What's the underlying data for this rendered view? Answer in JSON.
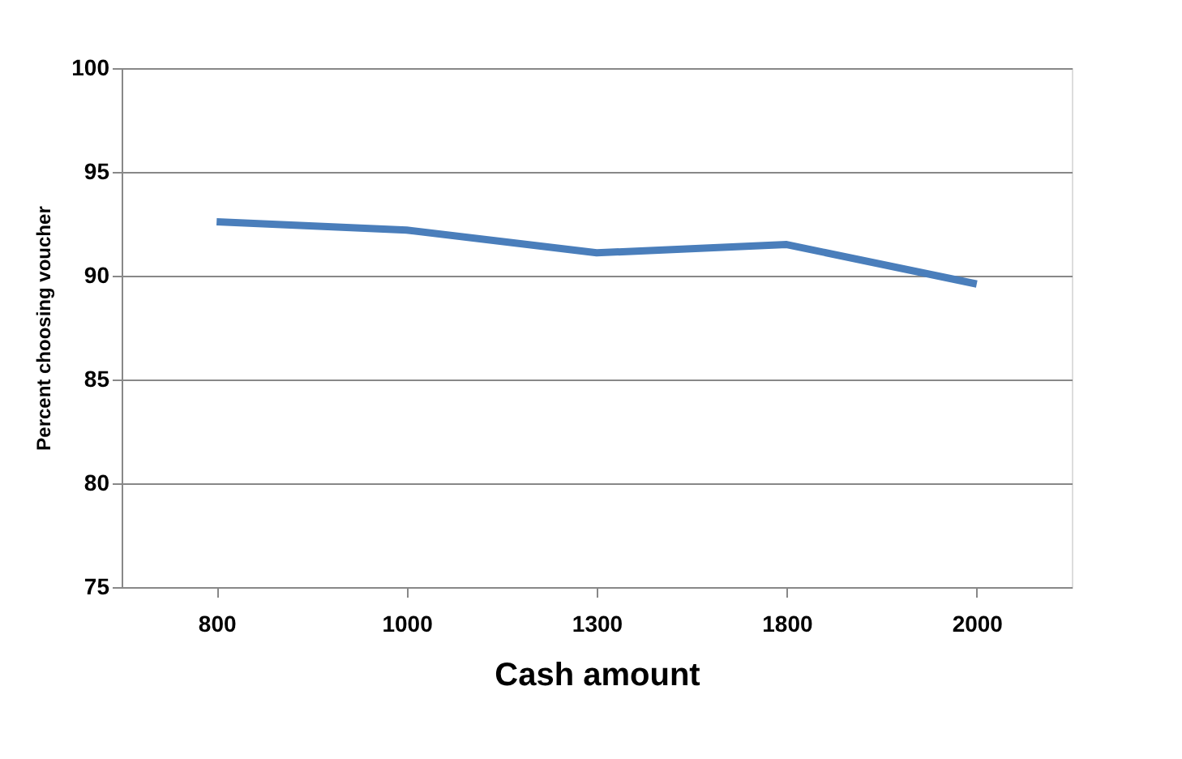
{
  "chart_data": {
    "type": "line",
    "xlabel": "Cash amount",
    "ylabel": "Percent choosing voucher",
    "categories": [
      "800",
      "1000",
      "1300",
      "1800",
      "2000"
    ],
    "series": [
      {
        "color": "#4a7ebb",
        "values": [
          92.6,
          92.2,
          91.1,
          91.5,
          89.6
        ]
      }
    ],
    "ylim": [
      75,
      100
    ],
    "yticks": [
      75,
      80,
      85,
      90,
      95,
      100
    ],
    "grid": "y",
    "marker": "none",
    "line_style": "solid"
  }
}
